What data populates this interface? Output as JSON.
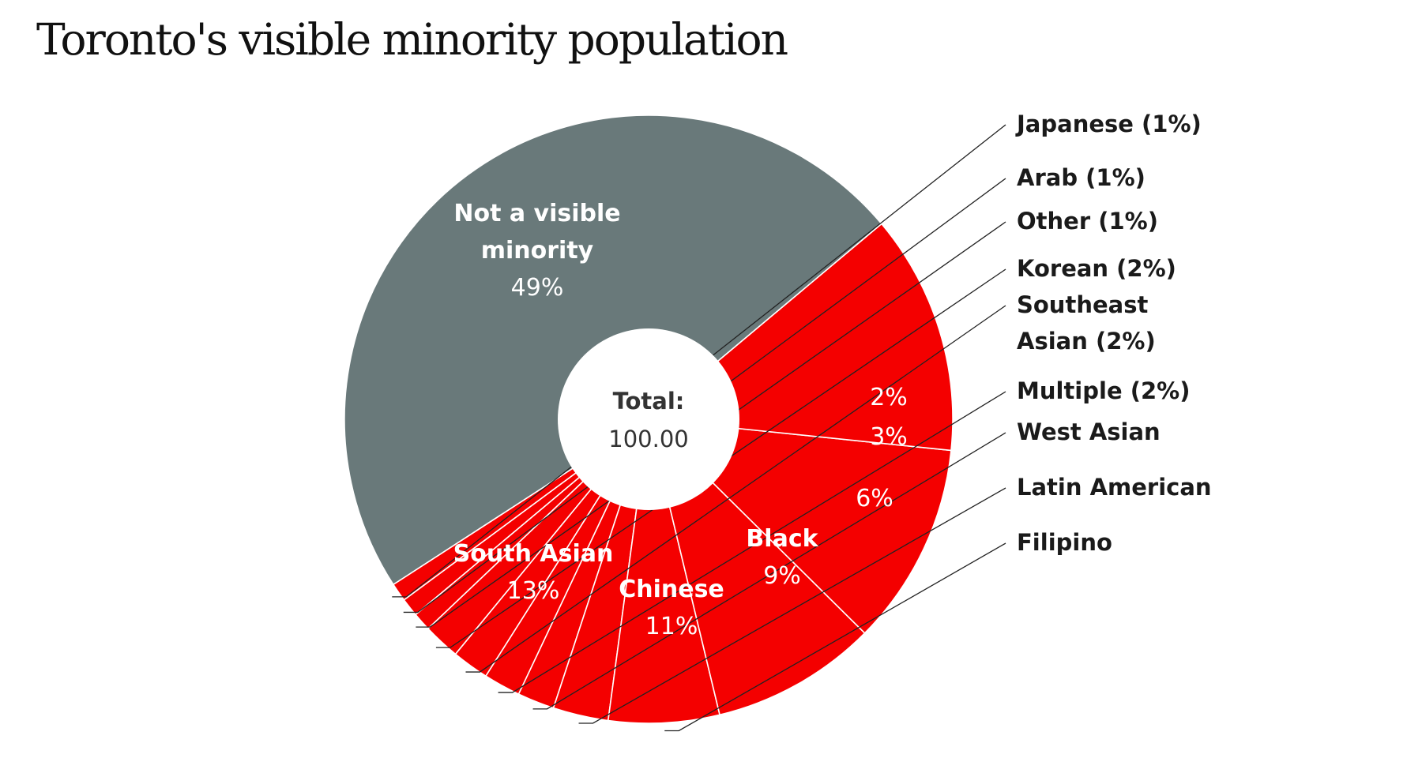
{
  "chart_data": {
    "type": "pie",
    "title": "Toronto's visible minority population",
    "center_label": {
      "heading": "Total:",
      "value": "100.00"
    },
    "colors": {
      "not_visible_minority": "#69797a",
      "visible_minority": "#f40000"
    },
    "slices": [
      {
        "label": "Not a visible minority",
        "value": 49,
        "value_label": "49%",
        "color": "#69797a",
        "label_lines": [
          "Not a visible",
          "minority"
        ],
        "label_mode": "inside"
      },
      {
        "label": "Japanese",
        "value": 1,
        "value_label": "Japanese (1%)",
        "color": "#f40000",
        "label_lines": [
          "Japanese (1%)"
        ],
        "label_mode": "outside"
      },
      {
        "label": "Arab",
        "value": 1,
        "value_label": "Arab (1%)",
        "color": "#f40000",
        "label_lines": [
          "Arab (1%)"
        ],
        "label_mode": "outside"
      },
      {
        "label": "Other",
        "value": 1,
        "value_label": "Other (1%)",
        "color": "#f40000",
        "label_lines": [
          "Other (1%)"
        ],
        "label_mode": "outside"
      },
      {
        "label": "Korean",
        "value": 2,
        "value_label": "Korean (2%)",
        "color": "#f40000",
        "label_lines": [
          "Korean (2%)"
        ],
        "label_mode": "outside"
      },
      {
        "label": "Southeast Asian",
        "value": 2,
        "value_label": "Southeast Asian (2%)",
        "color": "#f40000",
        "label_lines": [
          "Southeast",
          "Asian (2%)"
        ],
        "label_mode": "outside"
      },
      {
        "label": "Multiple",
        "value": 2,
        "value_label": "Multiple (2%)",
        "color": "#f40000",
        "label_lines": [
          "Multiple (2%)"
        ],
        "label_mode": "outside"
      },
      {
        "label": "West Asian",
        "value": 2,
        "value_label": "2%",
        "color": "#f40000",
        "label_lines": [
          "West Asian"
        ],
        "label_mode": "split"
      },
      {
        "label": "Latin American",
        "value": 3,
        "value_label": "3%",
        "color": "#f40000",
        "label_lines": [
          "Latin American"
        ],
        "label_mode": "split"
      },
      {
        "label": "Filipino",
        "value": 6,
        "value_label": "6%",
        "color": "#f40000",
        "label_lines": [
          "Filipino"
        ],
        "label_mode": "split"
      },
      {
        "label": "Black",
        "value": 9,
        "value_label": "9%",
        "color": "#f40000",
        "label_lines": [
          "Black"
        ],
        "label_mode": "inside"
      },
      {
        "label": "Chinese",
        "value": 11,
        "value_label": "11%",
        "color": "#f40000",
        "label_lines": [
          "Chinese"
        ],
        "label_mode": "inside"
      },
      {
        "label": "South Asian",
        "value": 13,
        "value_label": "13%",
        "color": "#f40000",
        "label_lines": [
          "South Asian"
        ],
        "label_mode": "inside"
      }
    ]
  }
}
